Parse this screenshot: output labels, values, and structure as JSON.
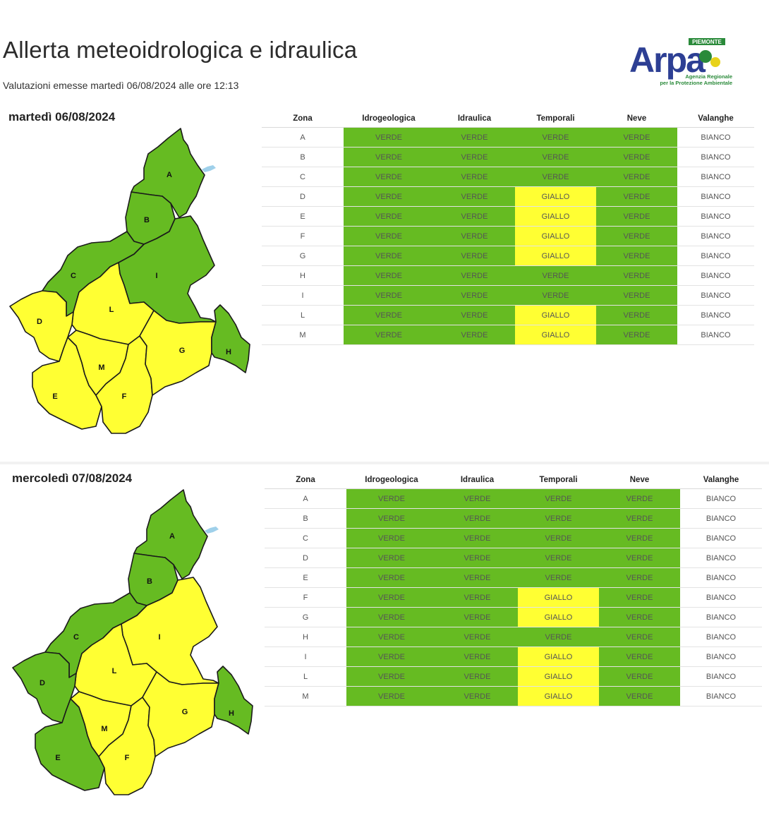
{
  "header": {
    "title": "Allerta meteoidrologica e idraulica",
    "subtitle": "Valutazioni emesse martedì 06/08/2024 alle ore 12:13",
    "logo": {
      "top_text": "PIEMONTE",
      "brand": "Arpa",
      "line1": "Agenzia Regionale",
      "line2": "per la Protezione Ambientale"
    }
  },
  "columns": [
    "Zona",
    "Idrogeologica",
    "Idraulica",
    "Temporali",
    "Neve",
    "Valanghe"
  ],
  "colors": {
    "VERDE": "#66bb22",
    "GIALLO": "#ffff33",
    "BIANCO": "#ffffff"
  },
  "days": [
    {
      "date": "martedì 06/08/2024",
      "rows": [
        {
          "zona": "A",
          "values": [
            "VERDE",
            "VERDE",
            "VERDE",
            "VERDE",
            "BIANCO"
          ]
        },
        {
          "zona": "B",
          "values": [
            "VERDE",
            "VERDE",
            "VERDE",
            "VERDE",
            "BIANCO"
          ]
        },
        {
          "zona": "C",
          "values": [
            "VERDE",
            "VERDE",
            "VERDE",
            "VERDE",
            "BIANCO"
          ]
        },
        {
          "zona": "D",
          "values": [
            "VERDE",
            "VERDE",
            "GIALLO",
            "VERDE",
            "BIANCO"
          ]
        },
        {
          "zona": "E",
          "values": [
            "VERDE",
            "VERDE",
            "GIALLO",
            "VERDE",
            "BIANCO"
          ]
        },
        {
          "zona": "F",
          "values": [
            "VERDE",
            "VERDE",
            "GIALLO",
            "VERDE",
            "BIANCO"
          ]
        },
        {
          "zona": "G",
          "values": [
            "VERDE",
            "VERDE",
            "GIALLO",
            "VERDE",
            "BIANCO"
          ]
        },
        {
          "zona": "H",
          "values": [
            "VERDE",
            "VERDE",
            "VERDE",
            "VERDE",
            "BIANCO"
          ]
        },
        {
          "zona": "I",
          "values": [
            "VERDE",
            "VERDE",
            "VERDE",
            "VERDE",
            "BIANCO"
          ]
        },
        {
          "zona": "L",
          "values": [
            "VERDE",
            "VERDE",
            "GIALLO",
            "VERDE",
            "BIANCO"
          ]
        },
        {
          "zona": "M",
          "values": [
            "VERDE",
            "VERDE",
            "GIALLO",
            "VERDE",
            "BIANCO"
          ]
        }
      ],
      "map_zones": {
        "A": "VERDE",
        "B": "VERDE",
        "C": "VERDE",
        "D": "GIALLO",
        "E": "GIALLO",
        "F": "GIALLO",
        "G": "GIALLO",
        "H": "VERDE",
        "I": "VERDE",
        "L": "GIALLO",
        "M": "GIALLO"
      }
    },
    {
      "date": "mercoledì 07/08/2024",
      "rows": [
        {
          "zona": "A",
          "values": [
            "VERDE",
            "VERDE",
            "VERDE",
            "VERDE",
            "BIANCO"
          ]
        },
        {
          "zona": "B",
          "values": [
            "VERDE",
            "VERDE",
            "VERDE",
            "VERDE",
            "BIANCO"
          ]
        },
        {
          "zona": "C",
          "values": [
            "VERDE",
            "VERDE",
            "VERDE",
            "VERDE",
            "BIANCO"
          ]
        },
        {
          "zona": "D",
          "values": [
            "VERDE",
            "VERDE",
            "VERDE",
            "VERDE",
            "BIANCO"
          ]
        },
        {
          "zona": "E",
          "values": [
            "VERDE",
            "VERDE",
            "VERDE",
            "VERDE",
            "BIANCO"
          ]
        },
        {
          "zona": "F",
          "values": [
            "VERDE",
            "VERDE",
            "GIALLO",
            "VERDE",
            "BIANCO"
          ]
        },
        {
          "zona": "G",
          "values": [
            "VERDE",
            "VERDE",
            "GIALLO",
            "VERDE",
            "BIANCO"
          ]
        },
        {
          "zona": "H",
          "values": [
            "VERDE",
            "VERDE",
            "VERDE",
            "VERDE",
            "BIANCO"
          ]
        },
        {
          "zona": "I",
          "values": [
            "VERDE",
            "VERDE",
            "GIALLO",
            "VERDE",
            "BIANCO"
          ]
        },
        {
          "zona": "L",
          "values": [
            "VERDE",
            "VERDE",
            "GIALLO",
            "VERDE",
            "BIANCO"
          ]
        },
        {
          "zona": "M",
          "values": [
            "VERDE",
            "VERDE",
            "GIALLO",
            "VERDE",
            "BIANCO"
          ]
        }
      ],
      "map_zones": {
        "A": "VERDE",
        "B": "VERDE",
        "C": "VERDE",
        "D": "VERDE",
        "E": "VERDE",
        "F": "GIALLO",
        "G": "GIALLO",
        "H": "VERDE",
        "I": "GIALLO",
        "L": "GIALLO",
        "M": "GIALLO"
      }
    }
  ]
}
